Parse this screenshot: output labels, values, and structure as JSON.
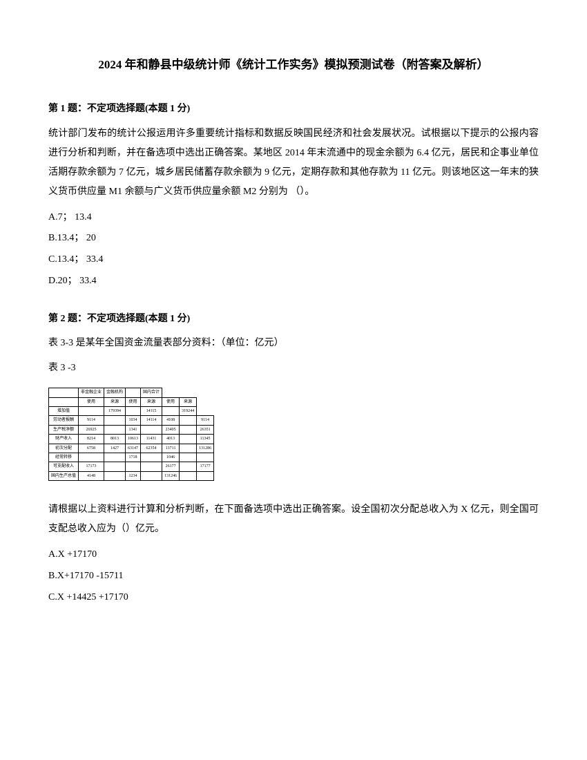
{
  "title": "2024 年和静县中级统计师《统计工作实务》模拟预测试卷（附答案及解析）",
  "q1": {
    "header": "第 1 题：不定项选择题(本题 1 分)",
    "body": "统计部门发布的统计公报运用许多重要统计指标和数据反映国民经济和社会发展状况。试根据以下提示的公报内容进行分析和判断，并在备选项中选出正确答案。某地区 2014 年末流通中的现金余额为 6.4 亿元，居民和企事业单位活期存款余额为 7 亿元，城乡居民储蓄存款余额为 9 亿元，定期存款和其他存款为 11 亿元。则该地区这一年末的狭义货币供应量 M1 余额与广义货币供应量余额 M2 分别为 （）。",
    "options": {
      "A": "A.7； 13.4",
      "B": "B.13.4； 20",
      "C": "C.13.4； 33.4",
      "D": "D.20； 33.4"
    }
  },
  "q2": {
    "header": "第 2 题：不定项选择题(本题 1 分)",
    "intro": "表 3-3 是某年全国资金流量表部分资料：（单位：亿元）",
    "table_label": "表 3 -3",
    "body": "请根据以上资料进行计算和分析判断，在下面备选项中选出正确答案。设全国初次分配总收入为 X 亿元，则全国可支配总收入应为（）亿元。",
    "options": {
      "A": "A.X +17170",
      "B": "B.X+17170 -15711",
      "C": "C.X +14425 +17170"
    }
  },
  "table": {
    "header_row1": [
      "",
      "非金融企业",
      "金融机构",
      "",
      "国内合计"
    ],
    "header_row2": [
      "",
      "使用",
      "来源",
      "使用",
      "来源",
      "使用",
      "来源"
    ],
    "rows": [
      [
        "增加值",
        "",
        "179394",
        "",
        "14115",
        "",
        "319244"
      ],
      [
        "劳动者报酬",
        "9114",
        "",
        "1034",
        "14114",
        "4108",
        "",
        "9114"
      ],
      [
        "生产税净额",
        "26925",
        "",
        "1341",
        "",
        "23405",
        "",
        "26351"
      ],
      [
        "财产收入",
        "8214",
        "8013",
        "10613",
        "11431",
        "4013",
        "",
        "11345"
      ],
      [
        "初次分配",
        "6758",
        "1427",
        "63147",
        "62354",
        "13711",
        "",
        "131286"
      ],
      [
        "经常转移",
        "",
        "",
        "1718",
        "",
        "1046",
        "",
        ""
      ],
      [
        "可支配收入",
        "17173",
        "",
        "",
        "",
        "26177",
        "",
        "17177"
      ],
      [
        "国内生产总值",
        "4148",
        "",
        "1234",
        "",
        "131246",
        "",
        ""
      ]
    ],
    "fontsize": 6,
    "border_color": "#000000"
  }
}
